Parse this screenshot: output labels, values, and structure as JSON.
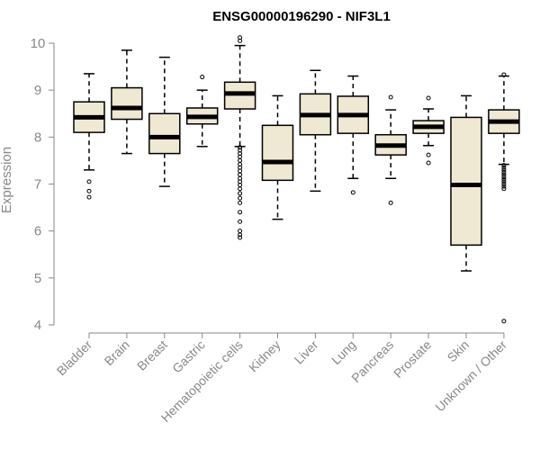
{
  "chart_data": {
    "type": "boxplot",
    "title": "ENSG00000196290 - NIF3L1",
    "xlabel": "",
    "ylabel": "Expression",
    "ylim": [
      4,
      10
    ],
    "yticks": [
      4,
      5,
      6,
      7,
      8,
      9,
      10
    ],
    "grid": false,
    "box_color": "#efe8d2",
    "categories": [
      "Bladder",
      "Brain",
      "Breast",
      "Gastric",
      "Hematopoietic cells",
      "Kidney",
      "Liver",
      "Lung",
      "Pancreas",
      "Prostate",
      "Skin",
      "Unknown / Other"
    ],
    "boxes": [
      {
        "min": 7.3,
        "q1": 8.1,
        "median": 8.42,
        "q3": 8.75,
        "max": 9.35,
        "outliers": [
          7.05,
          6.85,
          6.72
        ]
      },
      {
        "min": 7.65,
        "q1": 8.38,
        "median": 8.62,
        "q3": 9.05,
        "max": 9.85,
        "outliers": []
      },
      {
        "min": 6.95,
        "q1": 7.65,
        "median": 8.0,
        "q3": 8.5,
        "max": 9.7,
        "outliers": []
      },
      {
        "min": 7.8,
        "q1": 8.28,
        "median": 8.43,
        "q3": 8.62,
        "max": 9.0,
        "outliers": [
          9.28
        ]
      },
      {
        "min": 7.8,
        "q1": 8.6,
        "median": 8.93,
        "q3": 9.17,
        "max": 9.95,
        "outliers": [
          10.12,
          10.05,
          7.78,
          7.72,
          7.65,
          7.58,
          7.5,
          7.42,
          7.35,
          7.28,
          7.2,
          7.12,
          7.05,
          6.98,
          6.9,
          6.8,
          6.7,
          6.6,
          6.4,
          6.2,
          6.0,
          5.92,
          5.86
        ]
      },
      {
        "min": 6.25,
        "q1": 7.08,
        "median": 7.47,
        "q3": 8.25,
        "max": 8.88,
        "outliers": []
      },
      {
        "min": 6.85,
        "q1": 8.05,
        "median": 8.47,
        "q3": 8.92,
        "max": 9.42,
        "outliers": []
      },
      {
        "min": 7.12,
        "q1": 8.08,
        "median": 8.47,
        "q3": 8.87,
        "max": 9.3,
        "outliers": [
          6.82
        ]
      },
      {
        "min": 7.12,
        "q1": 7.62,
        "median": 7.82,
        "q3": 8.05,
        "max": 8.58,
        "outliers": [
          8.85,
          6.6
        ]
      },
      {
        "min": 7.82,
        "q1": 8.08,
        "median": 8.22,
        "q3": 8.35,
        "max": 8.6,
        "outliers": [
          8.83,
          7.62,
          7.45
        ]
      },
      {
        "min": 5.15,
        "q1": 5.7,
        "median": 6.98,
        "q3": 8.42,
        "max": 8.88,
        "outliers": []
      },
      {
        "min": 7.42,
        "q1": 8.08,
        "median": 8.33,
        "q3": 8.58,
        "max": 9.3,
        "outliers": [
          9.33,
          7.4,
          7.35,
          7.3,
          7.25,
          7.2,
          7.15,
          7.1,
          7.05,
          7.0,
          6.95,
          6.9,
          4.08
        ]
      }
    ]
  }
}
